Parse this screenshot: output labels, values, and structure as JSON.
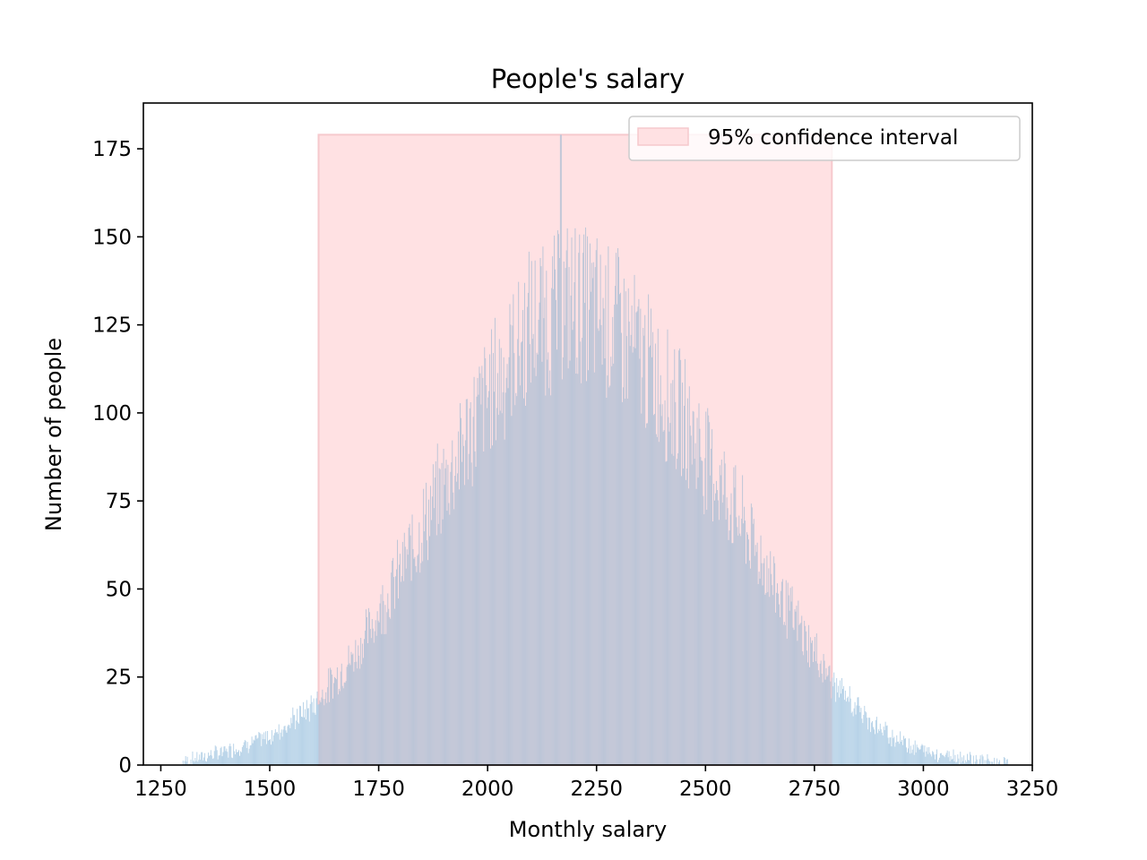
{
  "chart_data": {
    "type": "bar",
    "title": "People's salary",
    "xlabel": "Monthly salary",
    "ylabel": "Number of people",
    "xlim": [
      1210,
      3250
    ],
    "ylim": [
      0,
      188
    ],
    "xticks": [
      "1250",
      "1500",
      "1750",
      "2000",
      "2250",
      "2500",
      "2750",
      "3000",
      "3250"
    ],
    "yticks": [
      "0",
      "25",
      "50",
      "75",
      "100",
      "125",
      "150",
      "175"
    ],
    "grid": false,
    "legend_position": "top-right",
    "histogram": {
      "x_range": [
        1300,
        3200
      ],
      "bin_width": 2,
      "peak_count": 179,
      "peak_at": 2168,
      "approx_mean": 2200,
      "approx_std": 300,
      "approx_envelope": [
        {
          "x": 1300,
          "y": 1
        },
        {
          "x": 1400,
          "y": 4
        },
        {
          "x": 1500,
          "y": 8
        },
        {
          "x": 1600,
          "y": 17
        },
        {
          "x": 1700,
          "y": 32
        },
        {
          "x": 1800,
          "y": 55
        },
        {
          "x": 1900,
          "y": 80
        },
        {
          "x": 2000,
          "y": 105
        },
        {
          "x": 2100,
          "y": 125
        },
        {
          "x": 2200,
          "y": 132
        },
        {
          "x": 2300,
          "y": 125
        },
        {
          "x": 2400,
          "y": 108
        },
        {
          "x": 2500,
          "y": 88
        },
        {
          "x": 2600,
          "y": 65
        },
        {
          "x": 2700,
          "y": 42
        },
        {
          "x": 2800,
          "y": 22
        },
        {
          "x": 2900,
          "y": 10
        },
        {
          "x": 3000,
          "y": 4
        },
        {
          "x": 3100,
          "y": 2
        },
        {
          "x": 3200,
          "y": 0
        }
      ],
      "color_outside_interval": "#b8d3e8",
      "color_inside_interval": "#bcc5d7"
    },
    "confidence_interval": {
      "label": "95% confidence interval",
      "lower": 1612,
      "upper": 2790,
      "height": 179,
      "color": "#ffe1e3",
      "edge_color": "#f6c9cd"
    }
  }
}
